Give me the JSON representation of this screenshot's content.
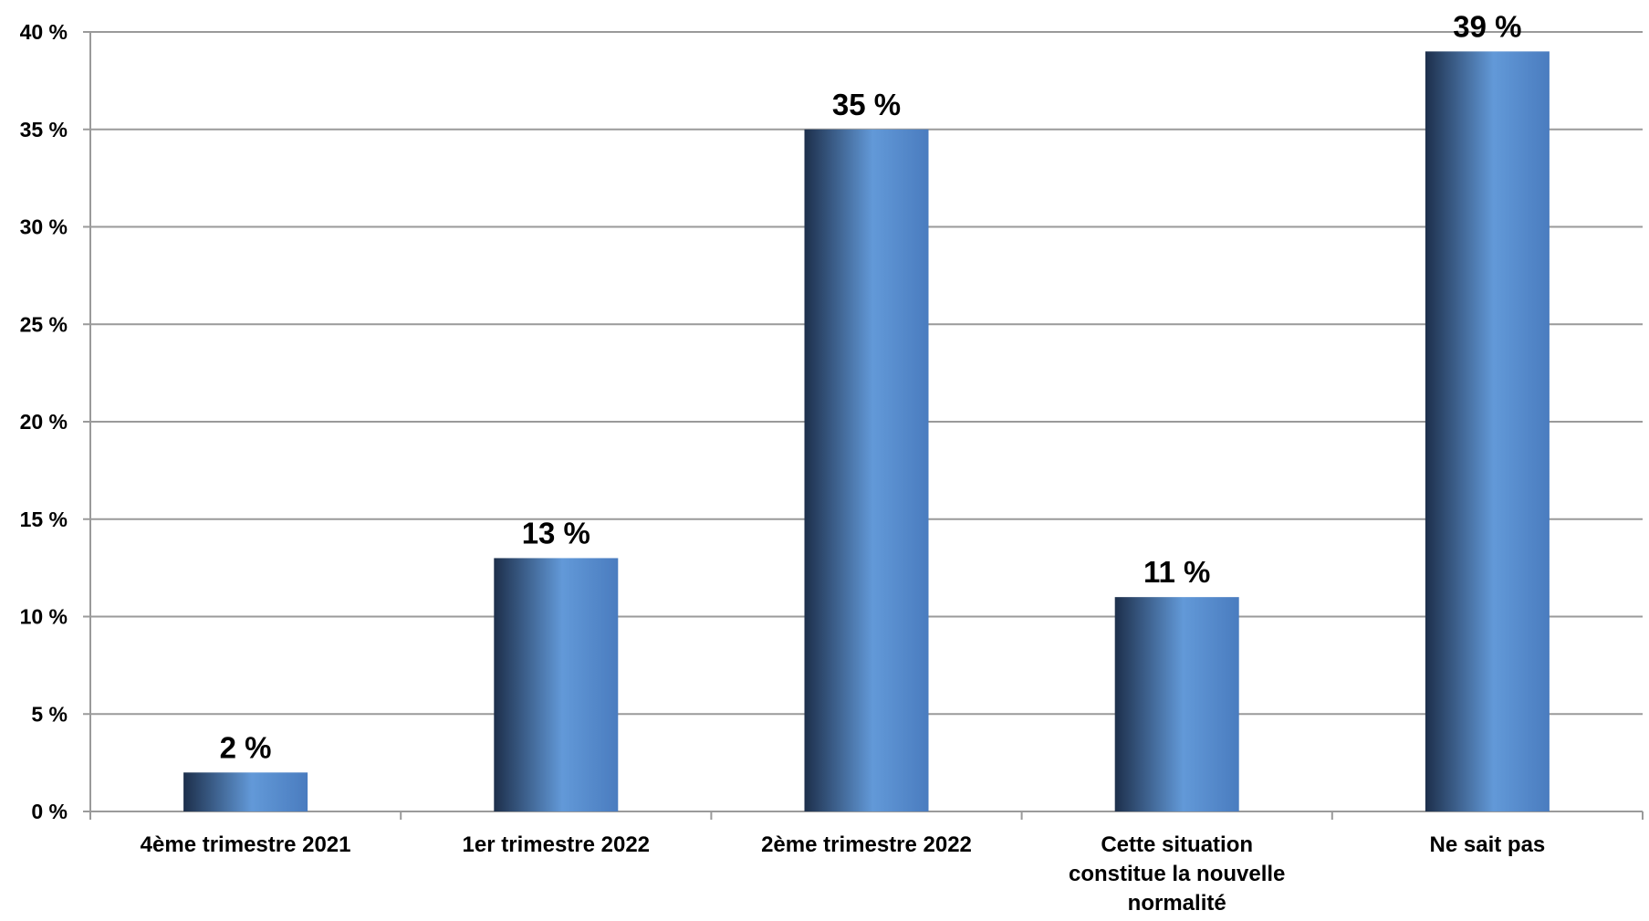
{
  "chart_data": {
    "type": "bar",
    "categories": [
      [
        "4ème trimestre 2021"
      ],
      [
        "1er trimestre 2022"
      ],
      [
        "2ème trimestre 2022"
      ],
      [
        "Cette situation",
        "constitue la nouvelle",
        "normalité"
      ],
      [
        "Ne sait pas"
      ]
    ],
    "values": [
      2,
      13,
      35,
      11,
      39
    ],
    "data_labels": [
      "2 %",
      "13 %",
      "35 %",
      "11 %",
      "39 %"
    ],
    "y_ticks": [
      {
        "value": 0,
        "label": "0 %"
      },
      {
        "value": 5,
        "label": "5 %"
      },
      {
        "value": 10,
        "label": "10 %"
      },
      {
        "value": 15,
        "label": "15 %"
      },
      {
        "value": 20,
        "label": "20 %"
      },
      {
        "value": 25,
        "label": "25 %"
      },
      {
        "value": 30,
        "label": "30 %"
      },
      {
        "value": 35,
        "label": "35 %"
      },
      {
        "value": 40,
        "label": "40 %"
      }
    ],
    "ylim": [
      0,
      40
    ],
    "grid": true,
    "legend": "none",
    "title": "",
    "xlabel": "",
    "ylabel": "",
    "colors": {
      "bar_dark": "#1d2f4b",
      "bar_light": "#6299d8",
      "bar_mid": "#4a7cbf",
      "grid": "#9a9a9a",
      "axis": "#9a9a9a"
    }
  }
}
